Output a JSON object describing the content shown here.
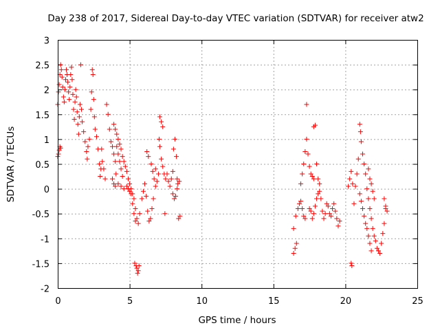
{
  "chart_data": {
    "type": "scatter",
    "title": "Day 238 of 2017, Sidereal Day-to-day VTEC variation (SDTVAR) for receiver atw2",
    "xlabel": "GPS time / hours",
    "ylabel": "SDTVAR / TECUs",
    "xlim": [
      0,
      25
    ],
    "ylim": [
      -2,
      3
    ],
    "xticks": [
      0,
      5,
      10,
      15,
      20,
      25
    ],
    "yticks": [
      -2,
      -1.5,
      -1,
      -0.5,
      0,
      0.5,
      1,
      1.5,
      2,
      2.5,
      3
    ],
    "xtick_labels": [
      "0",
      "5",
      "10",
      "15",
      "20",
      "25"
    ],
    "ytick_labels": [
      "-2",
      "-1.5",
      "-1",
      "-0.5",
      "0",
      "0.5",
      "1",
      "1.5",
      "2",
      "2.5",
      "3"
    ],
    "grid": true,
    "marker": "+",
    "color": "#ff0000",
    "series": [
      {
        "name": "SDTVAR",
        "points": [
          [
            0.0,
            0.65
          ],
          [
            0.05,
            0.7
          ],
          [
            0.1,
            0.78
          ],
          [
            0.15,
            0.85
          ],
          [
            0.2,
            0.82
          ],
          [
            0.0,
            1.7
          ],
          [
            0.05,
            1.95
          ],
          [
            0.1,
            2.1
          ],
          [
            0.15,
            2.3
          ],
          [
            0.2,
            2.5
          ],
          [
            0.25,
            2.4
          ],
          [
            0.3,
            2.25
          ],
          [
            0.35,
            2.05
          ],
          [
            0.4,
            1.85
          ],
          [
            0.45,
            1.75
          ],
          [
            0.5,
            2.0
          ],
          [
            0.55,
            2.2
          ],
          [
            0.6,
            2.4
          ],
          [
            0.65,
            2.3
          ],
          [
            0.7,
            2.15
          ],
          [
            0.75,
            1.95
          ],
          [
            0.8,
            1.8
          ],
          [
            0.85,
            2.05
          ],
          [
            0.9,
            2.3
          ],
          [
            0.95,
            2.45
          ],
          [
            1.0,
            2.2
          ],
          [
            1.05,
            1.9
          ],
          [
            1.1,
            1.6
          ],
          [
            1.15,
            1.4
          ],
          [
            1.2,
            1.75
          ],
          [
            1.25,
            2.0
          ],
          [
            1.3,
            1.85
          ],
          [
            1.35,
            1.55
          ],
          [
            1.4,
            1.3
          ],
          [
            1.45,
            1.1
          ],
          [
            1.5,
            1.45
          ],
          [
            1.55,
            1.7
          ],
          [
            1.6,
            2.5
          ],
          [
            1.65,
            1.6
          ],
          [
            1.7,
            1.35
          ],
          [
            1.8,
            1.15
          ],
          [
            1.9,
            0.95
          ],
          [
            2.0,
            0.75
          ],
          [
            2.05,
            0.6
          ],
          [
            2.1,
            0.85
          ],
          [
            2.2,
            1.0
          ],
          [
            2.3,
            1.6
          ],
          [
            2.35,
            1.95
          ],
          [
            2.4,
            2.4
          ],
          [
            2.45,
            2.3
          ],
          [
            2.5,
            1.8
          ],
          [
            2.55,
            1.45
          ],
          [
            2.6,
            1.2
          ],
          [
            2.7,
            1.05
          ],
          [
            2.8,
            0.8
          ],
          [
            2.9,
            0.5
          ],
          [
            2.95,
            0.25
          ],
          [
            3.0,
            0.4
          ],
          [
            3.05,
            0.8
          ],
          [
            3.1,
            0.55
          ],
          [
            3.2,
            0.4
          ],
          [
            3.3,
            0.2
          ],
          [
            3.4,
            1.7
          ],
          [
            3.5,
            1.5
          ],
          [
            3.6,
            1.2
          ],
          [
            3.7,
            0.95
          ],
          [
            3.8,
            0.85
          ],
          [
            3.9,
            0.7
          ],
          [
            4.0,
            0.55
          ],
          [
            4.05,
            0.3
          ],
          [
            4.1,
            0.85
          ],
          [
            4.2,
            0.7
          ],
          [
            4.3,
            0.55
          ],
          [
            4.4,
            0.4
          ],
          [
            4.5,
            0.25
          ],
          [
            3.8,
            0.2
          ],
          [
            3.9,
            0.1
          ],
          [
            4.0,
            0.05
          ],
          [
            4.2,
            0.1
          ],
          [
            4.4,
            0.05
          ],
          [
            4.6,
            0.0
          ],
          [
            4.8,
            0.05
          ],
          [
            4.9,
            0.0
          ],
          [
            5.0,
            -0.05
          ],
          [
            5.1,
            0.0
          ],
          [
            5.2,
            -0.1
          ],
          [
            5.3,
            -0.2
          ],
          [
            5.4,
            -0.4
          ],
          [
            5.5,
            -0.6
          ],
          [
            5.6,
            -0.7
          ],
          [
            5.7,
            -0.5
          ],
          [
            3.9,
            1.3
          ],
          [
            4.0,
            1.2
          ],
          [
            4.1,
            1.1
          ],
          [
            4.2,
            1.0
          ],
          [
            4.3,
            0.9
          ],
          [
            4.4,
            0.8
          ],
          [
            4.5,
            0.65
          ],
          [
            4.6,
            0.55
          ],
          [
            4.7,
            0.45
          ],
          [
            4.8,
            0.35
          ],
          [
            4.9,
            0.2
          ],
          [
            5.0,
            0.1
          ],
          [
            5.1,
            -0.1
          ],
          [
            5.2,
            -0.3
          ],
          [
            5.3,
            -0.5
          ],
          [
            5.4,
            -0.65
          ],
          [
            5.35,
            -1.5
          ],
          [
            5.45,
            -1.55
          ],
          [
            5.5,
            -1.6
          ],
          [
            5.55,
            -1.7
          ],
          [
            5.6,
            -1.65
          ],
          [
            5.65,
            -1.55
          ],
          [
            5.85,
            -0.2
          ],
          [
            5.95,
            -0.05
          ],
          [
            6.05,
            0.1
          ],
          [
            6.15,
            -0.15
          ],
          [
            6.25,
            -0.45
          ],
          [
            6.35,
            -0.65
          ],
          [
            6.45,
            -0.6
          ],
          [
            6.55,
            -0.4
          ],
          [
            6.65,
            -0.2
          ],
          [
            6.6,
            0.35
          ],
          [
            6.7,
            0.2
          ],
          [
            6.8,
            0.05
          ],
          [
            6.9,
            0.15
          ],
          [
            7.0,
            0.3
          ],
          [
            6.2,
            0.75
          ],
          [
            6.3,
            0.65
          ],
          [
            6.5,
            0.5
          ],
          [
            6.8,
            0.4
          ],
          [
            7.05,
            1.0
          ],
          [
            7.1,
            0.85
          ],
          [
            7.2,
            0.6
          ],
          [
            7.3,
            0.45
          ],
          [
            7.4,
            0.3
          ],
          [
            7.5,
            0.2
          ],
          [
            7.1,
            1.45
          ],
          [
            7.2,
            1.35
          ],
          [
            7.3,
            1.25
          ],
          [
            7.6,
            0.3
          ],
          [
            7.7,
            0.15
          ],
          [
            7.8,
            0.05
          ],
          [
            7.9,
            0.2
          ],
          [
            8.0,
            0.35
          ],
          [
            8.0,
            -0.1
          ],
          [
            8.1,
            -0.2
          ],
          [
            8.2,
            -0.15
          ],
          [
            8.3,
            0.0
          ],
          [
            8.05,
            0.8
          ],
          [
            8.15,
            1.0
          ],
          [
            8.25,
            0.65
          ],
          [
            8.5,
            -0.55
          ],
          [
            8.4,
            -0.6
          ],
          [
            7.45,
            -0.5
          ],
          [
            8.3,
            0.2
          ],
          [
            8.35,
            0.1
          ],
          [
            8.45,
            0.15
          ],
          [
            16.4,
            -1.3
          ],
          [
            16.5,
            -1.2
          ],
          [
            16.6,
            -1.1
          ],
          [
            16.4,
            -0.8
          ],
          [
            16.55,
            -0.55
          ],
          [
            16.7,
            -0.4
          ],
          [
            16.8,
            -0.3
          ],
          [
            16.9,
            -0.25
          ],
          [
            17.0,
            -0.4
          ],
          [
            17.1,
            -0.55
          ],
          [
            17.2,
            -0.6
          ],
          [
            16.9,
            0.1
          ],
          [
            17.0,
            0.3
          ],
          [
            17.1,
            0.5
          ],
          [
            17.2,
            0.75
          ],
          [
            17.3,
            1.0
          ],
          [
            17.4,
            0.7
          ],
          [
            17.5,
            0.45
          ],
          [
            17.6,
            0.3
          ],
          [
            17.7,
            0.25
          ],
          [
            17.8,
            0.2
          ],
          [
            17.3,
            1.7
          ],
          [
            17.8,
            1.25
          ],
          [
            17.9,
            1.28
          ],
          [
            17.5,
            -0.4
          ],
          [
            17.6,
            -0.45
          ],
          [
            17.7,
            -0.6
          ],
          [
            17.8,
            -0.5
          ],
          [
            17.9,
            -0.35
          ],
          [
            18.0,
            -0.2
          ],
          [
            18.1,
            -0.1
          ],
          [
            18.2,
            0.1
          ],
          [
            18.3,
            -0.2
          ],
          [
            18.4,
            -0.45
          ],
          [
            18.5,
            -0.6
          ],
          [
            18.6,
            -0.5
          ],
          [
            18.7,
            -0.3
          ],
          [
            18.8,
            -0.35
          ],
          [
            18.9,
            -0.5
          ],
          [
            19.0,
            -0.55
          ],
          [
            19.1,
            -0.4
          ],
          [
            19.2,
            -0.3
          ],
          [
            19.3,
            -0.45
          ],
          [
            19.4,
            -0.6
          ],
          [
            19.5,
            -0.75
          ],
          [
            19.6,
            -0.65
          ],
          [
            18.0,
            0.5
          ],
          [
            18.1,
            0.2
          ],
          [
            18.2,
            -0.05
          ],
          [
            20.2,
            0.05
          ],
          [
            20.3,
            0.2
          ],
          [
            20.4,
            0.35
          ],
          [
            20.5,
            0.1
          ],
          [
            20.6,
            -0.3
          ],
          [
            20.7,
            0.05
          ],
          [
            20.8,
            0.3
          ],
          [
            20.9,
            0.6
          ],
          [
            21.0,
            1.3
          ],
          [
            21.05,
            1.15
          ],
          [
            21.1,
            0.95
          ],
          [
            21.2,
            0.7
          ],
          [
            21.3,
            0.5
          ],
          [
            21.4,
            0.3
          ],
          [
            21.5,
            0.0
          ],
          [
            21.6,
            -0.2
          ],
          [
            21.7,
            -0.4
          ],
          [
            21.8,
            -0.6
          ],
          [
            21.9,
            -0.8
          ],
          [
            22.0,
            -0.95
          ],
          [
            22.1,
            -1.05
          ],
          [
            22.2,
            -1.2
          ],
          [
            22.3,
            -1.25
          ],
          [
            22.4,
            -1.3
          ],
          [
            22.5,
            -1.1
          ],
          [
            22.6,
            -0.9
          ],
          [
            22.7,
            -0.7
          ],
          [
            22.8,
            -0.4
          ],
          [
            22.7,
            -0.2
          ],
          [
            22.8,
            -0.35
          ],
          [
            22.9,
            -0.45
          ],
          [
            20.4,
            -1.5
          ],
          [
            20.45,
            -1.55
          ],
          [
            21.6,
            0.4
          ],
          [
            21.7,
            0.2
          ],
          [
            21.8,
            0.1
          ],
          [
            21.9,
            -0.05
          ],
          [
            22.0,
            -0.2
          ],
          [
            21.0,
            -0.1
          ],
          [
            21.1,
            -0.25
          ],
          [
            21.2,
            -0.4
          ],
          [
            21.3,
            -0.55
          ],
          [
            21.4,
            -0.7
          ],
          [
            21.5,
            -0.8
          ],
          [
            21.6,
            -0.95
          ],
          [
            21.7,
            -1.1
          ],
          [
            21.8,
            -1.25
          ]
        ]
      }
    ]
  }
}
